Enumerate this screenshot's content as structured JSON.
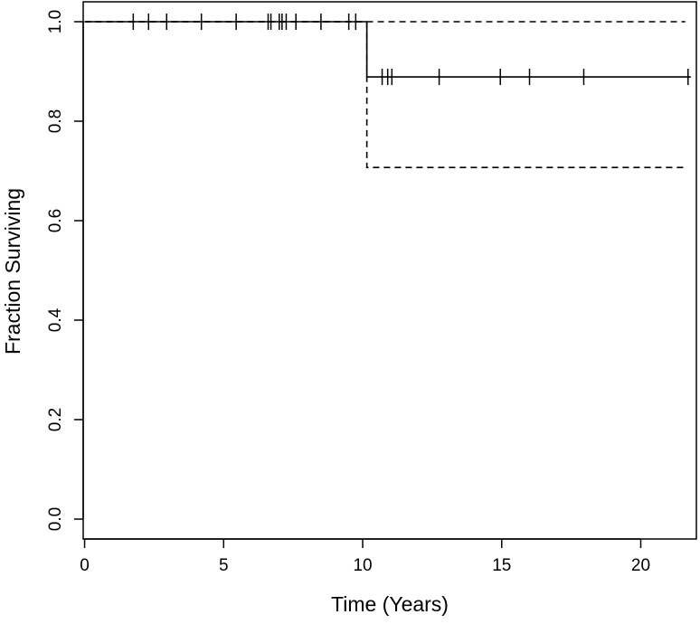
{
  "chart_data": {
    "type": "line",
    "title": "",
    "xlabel": "Time (Years)",
    "ylabel": "Fraction Surviving",
    "xlim": [
      -0.05,
      22
    ],
    "ylim": [
      -0.04,
      1.04
    ],
    "xticks": [
      0,
      5,
      10,
      15,
      20
    ],
    "xtick_labels": [
      "0",
      "5",
      "10",
      "15",
      "20"
    ],
    "yticks": [
      0.0,
      0.2,
      0.4,
      0.6,
      0.8,
      1.0
    ],
    "ytick_labels": [
      "0.0",
      "0.2",
      "0.4",
      "0.6",
      "0.8",
      "1.0"
    ],
    "grid": false,
    "legend": "none",
    "series": [
      {
        "role": "survival estimate",
        "style": "solid",
        "step_x": [
          0,
          10.15,
          21.8
        ],
        "step_y": [
          1.0,
          0.889,
          0.889
        ],
        "censor_marks": [
          {
            "x": 1.75,
            "y": 1.0
          },
          {
            "x": 2.3,
            "y": 1.0
          },
          {
            "x": 2.95,
            "y": 1.0
          },
          {
            "x": 4.2,
            "y": 1.0
          },
          {
            "x": 5.45,
            "y": 1.0
          },
          {
            "x": 6.6,
            "y": 1.0
          },
          {
            "x": 6.7,
            "y": 1.0
          },
          {
            "x": 7.0,
            "y": 1.0
          },
          {
            "x": 7.1,
            "y": 1.0
          },
          {
            "x": 7.25,
            "y": 1.0
          },
          {
            "x": 7.6,
            "y": 1.0
          },
          {
            "x": 8.5,
            "y": 1.0
          },
          {
            "x": 9.5,
            "y": 1.0
          },
          {
            "x": 9.75,
            "y": 1.0
          },
          {
            "x": 10.7,
            "y": 0.889
          },
          {
            "x": 10.9,
            "y": 0.889
          },
          {
            "x": 11.05,
            "y": 0.889
          },
          {
            "x": 12.75,
            "y": 0.889
          },
          {
            "x": 14.95,
            "y": 0.889
          },
          {
            "x": 16.0,
            "y": 0.889
          },
          {
            "x": 17.95,
            "y": 0.889
          },
          {
            "x": 21.7,
            "y": 0.889
          }
        ]
      },
      {
        "role": "upper confidence bound",
        "style": "dashed",
        "step_x": [
          0,
          21.6
        ],
        "step_y": [
          1.0,
          1.0
        ]
      },
      {
        "role": "lower confidence bound",
        "style": "dashed",
        "step_x": [
          0,
          10.15,
          21.6
        ],
        "step_y": [
          1.0,
          0.707,
          0.707
        ]
      }
    ]
  }
}
